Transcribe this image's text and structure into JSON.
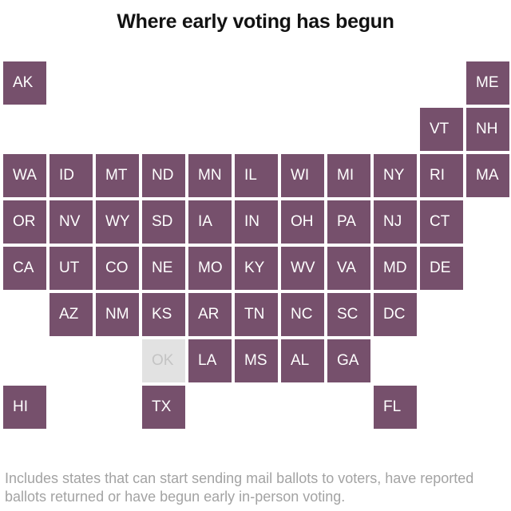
{
  "title": "Where early voting has begun",
  "note": "Includes states that can start sending mail ballots to voters, have reported ballots returned or have begun early in-person voting.",
  "colors": {
    "early_voting_begun": "#76506c",
    "not_yet": "#e2e2e2",
    "not_yet_text": "#c4c4c4"
  },
  "states": [
    {
      "abbr": "AK",
      "status": "early_voting_begun"
    },
    {
      "abbr": "ME",
      "status": "early_voting_begun"
    },
    {
      "abbr": "VT",
      "status": "early_voting_begun"
    },
    {
      "abbr": "NH",
      "status": "early_voting_begun"
    },
    {
      "abbr": "WA",
      "status": "early_voting_begun"
    },
    {
      "abbr": "ID",
      "status": "early_voting_begun"
    },
    {
      "abbr": "MT",
      "status": "early_voting_begun"
    },
    {
      "abbr": "ND",
      "status": "early_voting_begun"
    },
    {
      "abbr": "MN",
      "status": "early_voting_begun"
    },
    {
      "abbr": "IL",
      "status": "early_voting_begun"
    },
    {
      "abbr": "WI",
      "status": "early_voting_begun"
    },
    {
      "abbr": "MI",
      "status": "early_voting_begun"
    },
    {
      "abbr": "NY",
      "status": "early_voting_begun"
    },
    {
      "abbr": "RI",
      "status": "early_voting_begun"
    },
    {
      "abbr": "MA",
      "status": "early_voting_begun"
    },
    {
      "abbr": "OR",
      "status": "early_voting_begun"
    },
    {
      "abbr": "NV",
      "status": "early_voting_begun"
    },
    {
      "abbr": "WY",
      "status": "early_voting_begun"
    },
    {
      "abbr": "SD",
      "status": "early_voting_begun"
    },
    {
      "abbr": "IA",
      "status": "early_voting_begun"
    },
    {
      "abbr": "IN",
      "status": "early_voting_begun"
    },
    {
      "abbr": "OH",
      "status": "early_voting_begun"
    },
    {
      "abbr": "PA",
      "status": "early_voting_begun"
    },
    {
      "abbr": "NJ",
      "status": "early_voting_begun"
    },
    {
      "abbr": "CT",
      "status": "early_voting_begun"
    },
    {
      "abbr": "CA",
      "status": "early_voting_begun"
    },
    {
      "abbr": "UT",
      "status": "early_voting_begun"
    },
    {
      "abbr": "CO",
      "status": "early_voting_begun"
    },
    {
      "abbr": "NE",
      "status": "early_voting_begun"
    },
    {
      "abbr": "MO",
      "status": "early_voting_begun"
    },
    {
      "abbr": "KY",
      "status": "early_voting_begun"
    },
    {
      "abbr": "WV",
      "status": "early_voting_begun"
    },
    {
      "abbr": "VA",
      "status": "early_voting_begun"
    },
    {
      "abbr": "MD",
      "status": "early_voting_begun"
    },
    {
      "abbr": "DE",
      "status": "early_voting_begun"
    },
    {
      "abbr": "AZ",
      "status": "early_voting_begun"
    },
    {
      "abbr": "NM",
      "status": "early_voting_begun"
    },
    {
      "abbr": "KS",
      "status": "early_voting_begun"
    },
    {
      "abbr": "AR",
      "status": "early_voting_begun"
    },
    {
      "abbr": "TN",
      "status": "early_voting_begun"
    },
    {
      "abbr": "NC",
      "status": "early_voting_begun"
    },
    {
      "abbr": "SC",
      "status": "early_voting_begun"
    },
    {
      "abbr": "DC",
      "status": "early_voting_begun"
    },
    {
      "abbr": "OK",
      "status": "not_yet"
    },
    {
      "abbr": "LA",
      "status": "early_voting_begun"
    },
    {
      "abbr": "MS",
      "status": "early_voting_begun"
    },
    {
      "abbr": "AL",
      "status": "early_voting_begun"
    },
    {
      "abbr": "GA",
      "status": "early_voting_begun"
    },
    {
      "abbr": "HI",
      "status": "early_voting_begun"
    },
    {
      "abbr": "TX",
      "status": "early_voting_begun"
    },
    {
      "abbr": "FL",
      "status": "early_voting_begun"
    }
  ]
}
